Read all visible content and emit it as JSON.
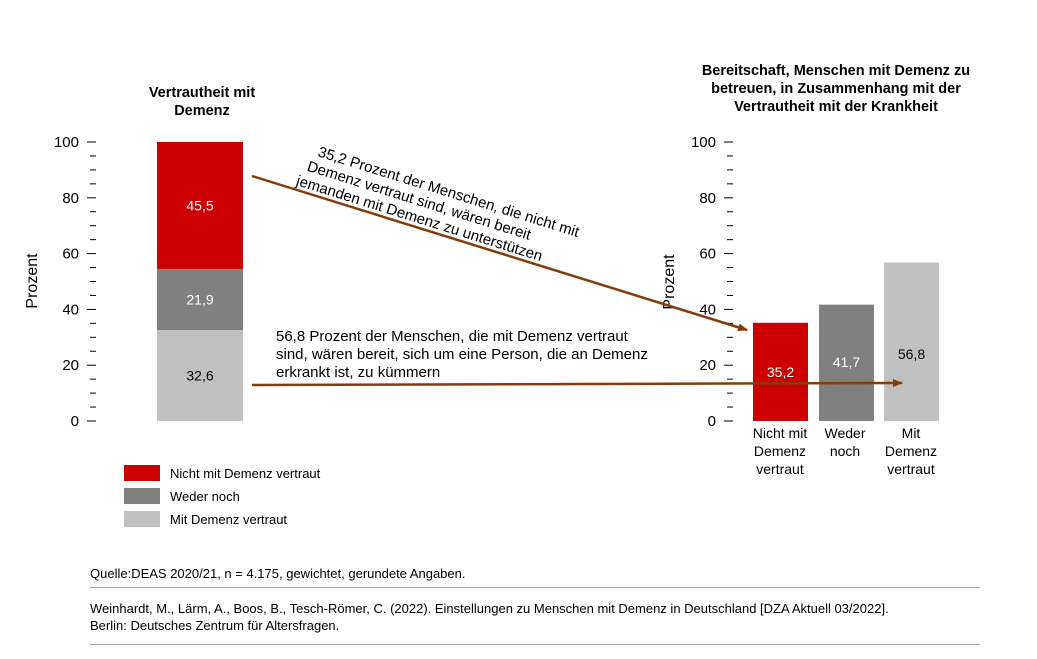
{
  "colors": {
    "red": "#cc0000",
    "dark_gray": "#808080",
    "light_gray": "#c0c0c0",
    "arrow": "#843c0c"
  },
  "chart_data": [
    {
      "type": "bar",
      "stacked": true,
      "title": "Vertrautheit mit Demenz",
      "ylabel": "Prozent",
      "ylim": [
        0,
        100
      ],
      "yticks": [
        "0",
        "20",
        "40",
        "60",
        "80",
        "100"
      ],
      "series": [
        {
          "name": "Mit Demenz vertraut",
          "value": 32.6,
          "label": "32,6",
          "color": "#c0c0c0"
        },
        {
          "name": "Weder noch",
          "value": 21.9,
          "label": "21,9",
          "color": "#808080"
        },
        {
          "name": "Nicht  mit Demenz vertraut",
          "value": 45.5,
          "label": "45,5",
          "color": "#cc0000"
        }
      ]
    },
    {
      "type": "bar",
      "title": "Bereitschaft, Menschen mit Demenz zu betreuen, in Zusammenhang mit der Vertrautheit mit der Krankheit",
      "ylabel": "Prozent",
      "ylim": [
        0,
        100
      ],
      "yticks": [
        "0",
        "20",
        "40",
        "60",
        "80",
        "100"
      ],
      "categories": [
        "Nicht mit Demenz vertraut",
        "Weder noch",
        "Mit Demenz vertraut"
      ],
      "values": [
        35.2,
        41.7,
        56.8
      ],
      "labels": [
        "35,2",
        "41,7",
        "56,8"
      ],
      "colors": [
        "#cc0000",
        "#808080",
        "#c0c0c0"
      ]
    }
  ],
  "left_title_lines": [
    "Vertrautheit mit",
    "Demenz"
  ],
  "right_title_lines": [
    "Bereitschaft, Menschen mit Demenz zu",
    "betreuen, in Zusammenhang mit der",
    "Vertrautheit mit der Krankheit"
  ],
  "category_label_lines": [
    [
      "Nicht mit",
      "Demenz",
      "vertraut"
    ],
    [
      "Weder",
      "noch"
    ],
    [
      "Mit",
      "Demenz",
      "vertraut"
    ]
  ],
  "annotations": {
    "upper_lines": [
      "35,2 Prozent der Menschen, die nicht mit",
      "Demenz vertraut sind, wären bereit",
      "jemanden mit Demenz zu unterstützen"
    ],
    "lower_lines": [
      "56,8 Prozent der Menschen, die mit Demenz vertraut",
      "sind, wären bereit, sich um eine Person, die an Demenz",
      "erkrankt ist, zu kümmern"
    ]
  },
  "legend": [
    {
      "label": "Nicht  mit Demenz vertraut",
      "color": "#cc0000"
    },
    {
      "label": "Weder noch",
      "color": "#808080"
    },
    {
      "label": "Mit Demenz vertraut",
      "color": "#c0c0c0"
    }
  ],
  "footer": {
    "source": "Quelle:DEAS 2020/21, n = 4.175, gewichtet, gerundete Angaben.",
    "citation_line1": "Weinhardt, M., Lärm, A., Boos, B., Tesch-Römer, C. (2022). Einstellungen zu Menschen mit Demenz in Deutschland [DZA Aktuell 03/2022].",
    "citation_line2": "Berlin: Deutsches Zentrum für Altersfragen."
  }
}
